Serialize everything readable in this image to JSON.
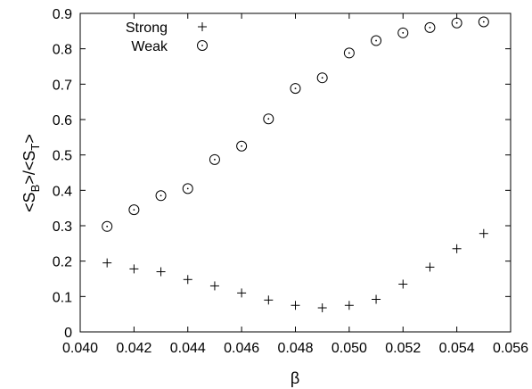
{
  "chart_data": {
    "type": "scatter",
    "xlabel": "β",
    "ylabel": {
      "pre": "<S",
      "sub1": "B",
      "mid": ">/<S",
      "sub2": "T",
      "post": ">"
    },
    "xlim": [
      0.04,
      0.056
    ],
    "ylim": [
      0,
      0.9
    ],
    "xticks": [
      "0.040",
      "0.042",
      "0.044",
      "0.046",
      "0.048",
      "0.050",
      "0.052",
      "0.054",
      "0.056"
    ],
    "yticks": [
      "0",
      "0.1",
      "0.2",
      "0.3",
      "0.4",
      "0.5",
      "0.6",
      "0.7",
      "0.8",
      "0.9"
    ],
    "legend_position": "top-left",
    "grid": false,
    "series": [
      {
        "name": "Strong",
        "marker": "plus",
        "x": [
          0.041,
          0.042,
          0.043,
          0.044,
          0.045,
          0.046,
          0.047,
          0.048,
          0.049,
          0.05,
          0.051,
          0.052,
          0.053,
          0.054,
          0.055
        ],
        "y": [
          0.195,
          0.178,
          0.17,
          0.148,
          0.13,
          0.11,
          0.09,
          0.075,
          0.068,
          0.075,
          0.092,
          0.135,
          0.183,
          0.235,
          0.278
        ]
      },
      {
        "name": "Weak",
        "marker": "circle-dot",
        "x": [
          0.041,
          0.042,
          0.043,
          0.044,
          0.045,
          0.046,
          0.047,
          0.048,
          0.049,
          0.05,
          0.051,
          0.052,
          0.053,
          0.054,
          0.055
        ],
        "y": [
          0.298,
          0.345,
          0.385,
          0.405,
          0.487,
          0.525,
          0.602,
          0.688,
          0.718,
          0.788,
          0.823,
          0.845,
          0.86,
          0.873,
          0.876
        ]
      }
    ]
  }
}
